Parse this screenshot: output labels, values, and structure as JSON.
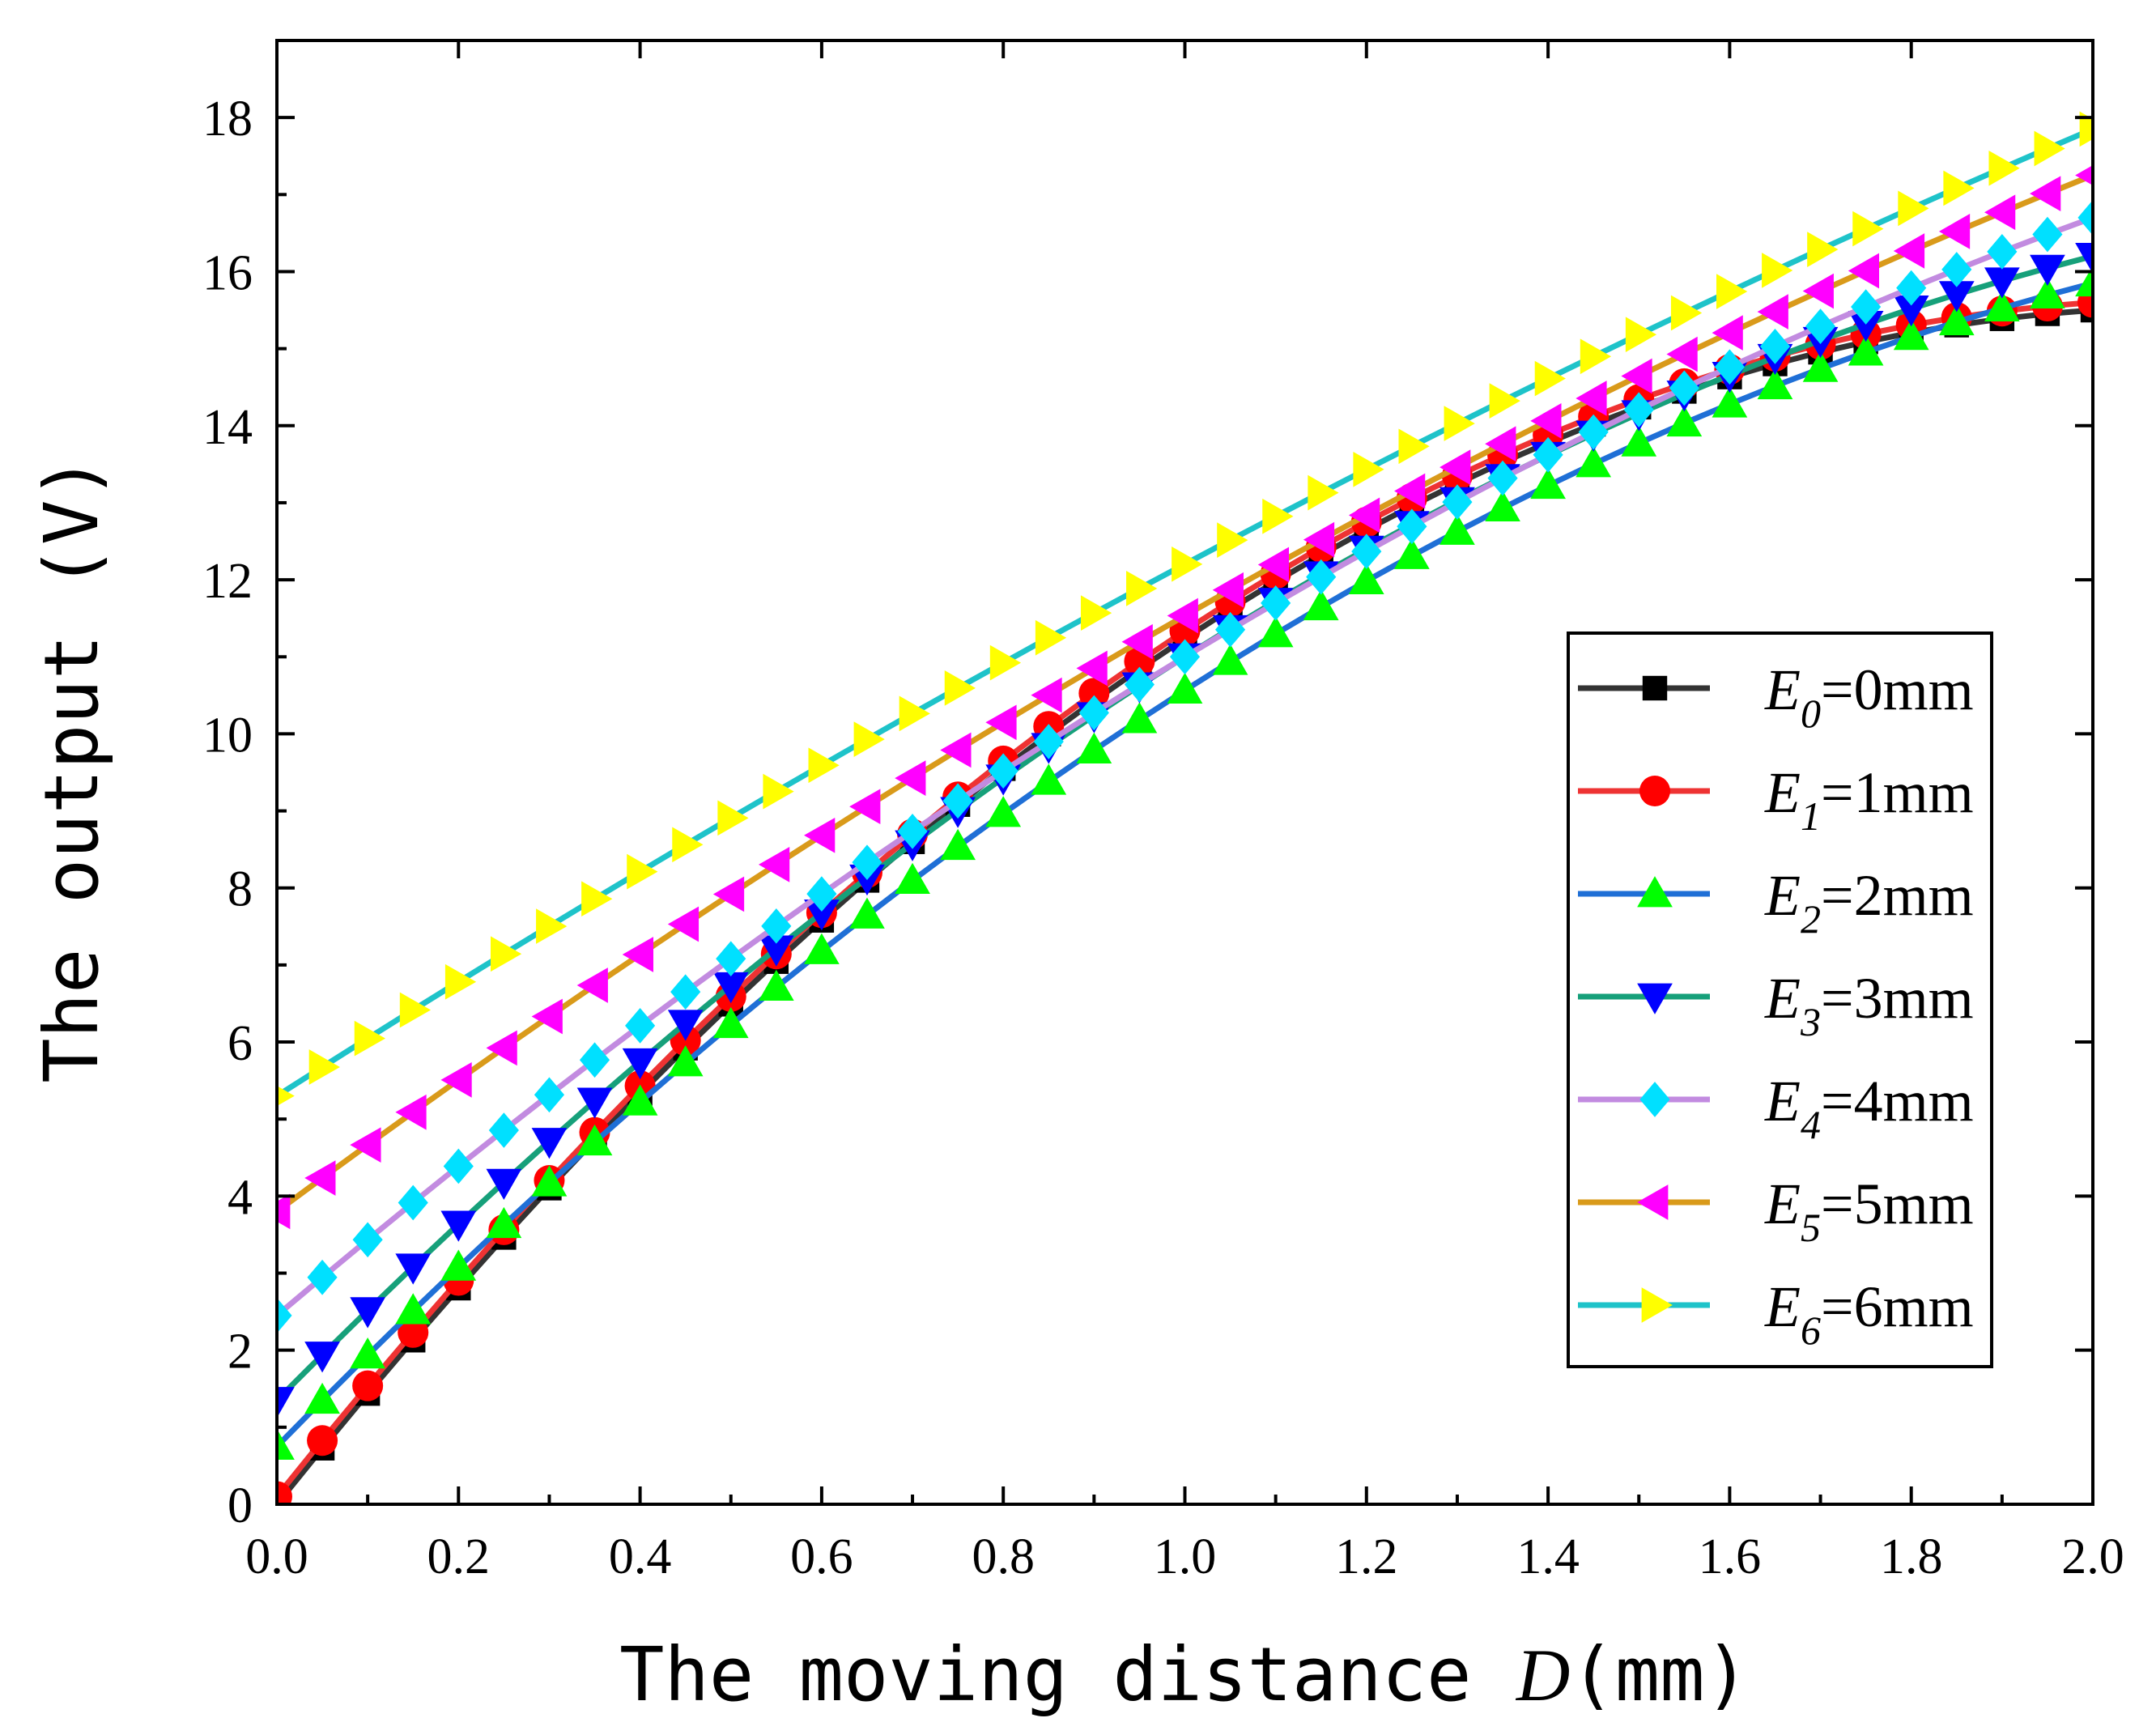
{
  "chart_data": {
    "type": "line",
    "title": "",
    "xlabel_text": "The moving distance ",
    "xlabel_var": "D",
    "xlabel_unit": "(mm)",
    "ylabel": "The output (V)",
    "xlim": [
      0.0,
      2.0
    ],
    "ylim": [
      0,
      19
    ],
    "xticks": [
      "0.0",
      "0.2",
      "0.4",
      "0.6",
      "0.8",
      "1.0",
      "1.2",
      "1.4",
      "1.6",
      "1.8",
      "2.0"
    ],
    "yticks": [
      "0",
      "2",
      "4",
      "6",
      "8",
      "10",
      "12",
      "14",
      "16",
      "18"
    ],
    "legend_position": "center-right",
    "series": [
      {
        "name": "E0=0mm",
        "letter": "E",
        "sub": "0",
        "value_text": "=0mm",
        "line_color": "#333333",
        "marker_color": "#000000",
        "marker": "square",
        "start": 0.0,
        "end": 15.5,
        "curvature": 0.9
      },
      {
        "name": "E1=1mm",
        "letter": "E",
        "sub": "1",
        "value_text": "=1mm",
        "line_color": "#ee3333",
        "marker_color": "#ff0000",
        "marker": "circle",
        "start": 0.1,
        "end": 15.6,
        "curvature": 0.9
      },
      {
        "name": "E2=2mm",
        "letter": "E",
        "sub": "2",
        "value_text": "=2mm",
        "line_color": "#1f6fd6",
        "marker_color": "#00ff00",
        "marker": "triangle-up",
        "start": 0.75,
        "end": 15.85,
        "curvature": 0.6
      },
      {
        "name": "E3=3mm",
        "letter": "E",
        "sub": "3",
        "value_text": "=3mm",
        "line_color": "#16a07a",
        "marker_color": "#0000ff",
        "marker": "triangle-down",
        "start": 1.35,
        "end": 16.2,
        "curvature": 0.6
      },
      {
        "name": "E4=4mm",
        "letter": "E",
        "sub": "4",
        "value_text": "=4mm",
        "line_color": "#c28be0",
        "marker_color": "#00e0ff",
        "marker": "diamond",
        "start": 2.45,
        "end": 16.7,
        "curvature": 0.4
      },
      {
        "name": "E5=5mm",
        "letter": "E",
        "sub": "5",
        "value_text": "=5mm",
        "line_color": "#d99a1a",
        "marker_color": "#ff00ff",
        "marker": "triangle-left",
        "start": 3.8,
        "end": 17.25,
        "curvature": 0.3
      },
      {
        "name": "E6=6mm",
        "letter": "E",
        "sub": "6",
        "value_text": "=6mm",
        "line_color": "#1ec3c9",
        "marker_color": "#ffff00",
        "marker": "triangle-right",
        "start": 5.3,
        "end": 17.85,
        "curvature": 0.2
      }
    ],
    "x_step": 0.05
  }
}
